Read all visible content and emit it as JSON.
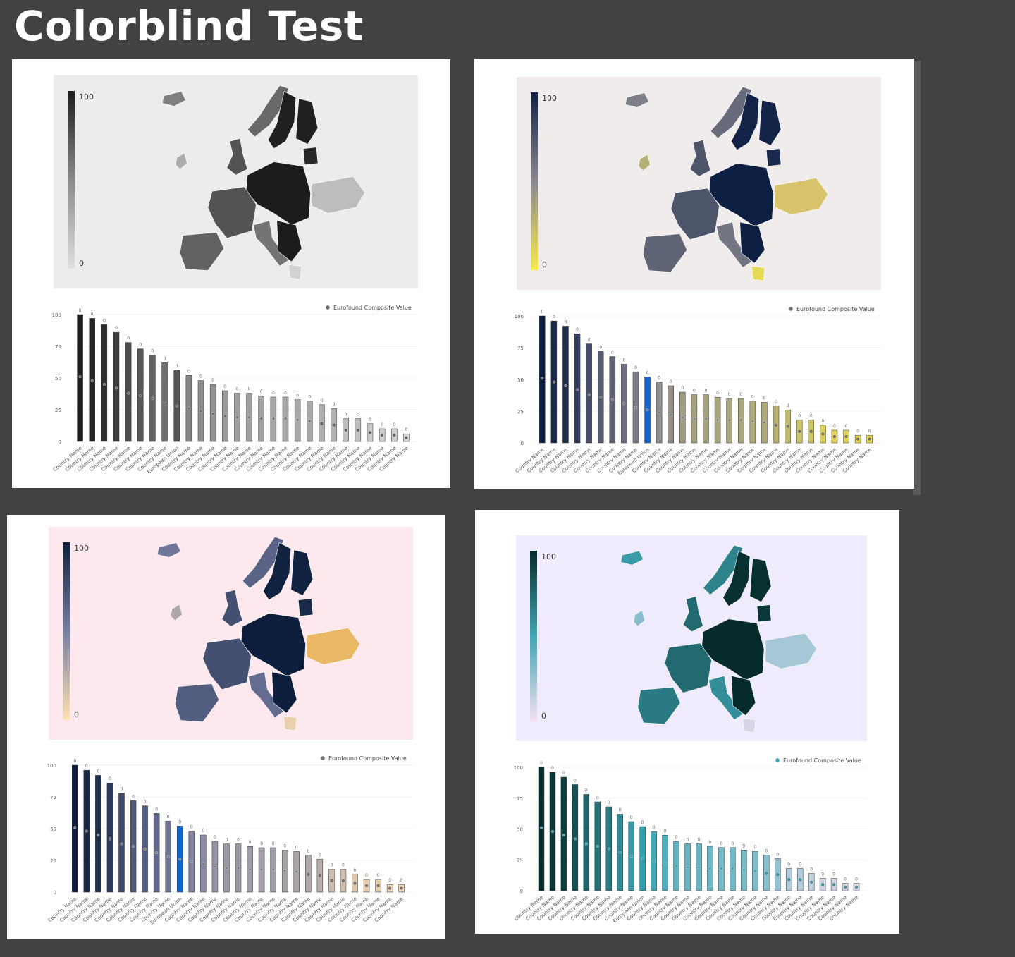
{
  "page": {
    "title": "Colorblind Test"
  },
  "palettes": [
    {
      "name": "grayscale",
      "map_bg": "#ececec",
      "high": "#1c1c1c",
      "mid": "#8a8a8a",
      "low": "#e0e0e0",
      "eu": "#555555",
      "dot": "#666666",
      "non_eu": "#bdbdbd"
    },
    {
      "name": "navy-gold",
      "map_bg": "#efeceb",
      "high": "#0e1f44",
      "mid": "#8c8a92",
      "low": "#f7e84a",
      "eu": "#1266d6",
      "dot": "#777777",
      "non_eu": "#d7c36a"
    },
    {
      "name": "navy-peach",
      "map_bg": "#fde8ee",
      "high": "#0e1f3e",
      "mid": "#7a80a4",
      "low": "#ffe0b0",
      "eu": "#1266c8",
      "dot": "#777777",
      "non_eu": "#e8b865"
    },
    {
      "name": "teal",
      "map_bg": "#efeafc",
      "high": "#062b2b",
      "mid": "#3fa7b4",
      "low": "#f4dff0",
      "eu": "#2fa0ae",
      "dot": "#2aa6b0",
      "non_eu": "#a6c8d6"
    }
  ],
  "chart_data": [
    {
      "type": "bar",
      "title": "",
      "legend": {
        "label": "Eurofound Composite Value",
        "placement": "top-right"
      },
      "legend_label": "Eurofound Composite Value",
      "color_scale_labels": [
        "100",
        "0"
      ],
      "y_ticks": [
        "100",
        "75",
        "50",
        "25",
        "0"
      ],
      "ylim": [
        0,
        100
      ],
      "categories": [
        "Country Name",
        "Country Name",
        "Country Name",
        "Country Name",
        "Country Name",
        "Country Name",
        "Country Name",
        "Country Name",
        "European Union",
        "Country Name",
        "Country Name",
        "Country Name",
        "Country Name",
        "Country Name",
        "Country Name",
        "Country Name",
        "Country Name",
        "Country Name",
        "Country Name",
        "Country Name",
        "Country Name",
        "Country Name",
        "Country Name",
        "Country Name",
        "Country Name",
        "Country Name",
        "Country Name",
        "Country Name"
      ],
      "values": [
        100,
        97,
        92,
        86,
        78,
        73,
        68,
        62,
        56,
        52,
        48,
        45,
        40,
        38,
        38,
        36,
        35,
        35,
        33,
        32,
        29,
        26,
        18,
        18,
        14,
        10,
        10,
        6
      ],
      "composite_values": [
        51,
        48,
        45,
        42,
        38,
        36,
        34,
        31,
        28,
        26,
        24,
        22,
        20,
        19,
        19,
        18,
        18,
        18,
        17,
        16,
        14,
        13,
        9,
        9,
        7,
        5,
        5,
        3
      ],
      "value_labels": [
        "0",
        "0",
        "0",
        "0",
        "0",
        "0",
        "0",
        "0",
        "0",
        "0",
        "0",
        "0",
        "0",
        "0",
        "0",
        "0",
        "0",
        "0",
        "0",
        "0",
        "0",
        "0",
        "0",
        "0",
        "0",
        "0",
        "0",
        "0"
      ],
      "eu_index": 8
    },
    {
      "type": "bar",
      "title": "",
      "legend": {
        "label": "Eurofound Composite Value",
        "placement": "top-right"
      },
      "legend_label": "Eurofound Composite Value",
      "color_scale_labels": [
        "100",
        "0"
      ],
      "y_ticks": [
        "100",
        "75",
        "50",
        "25",
        "0"
      ],
      "ylim": [
        0,
        100
      ],
      "categories": [
        "Country Name",
        "Country Name",
        "Country Name",
        "Country Name",
        "Country Name",
        "Country Name",
        "Country Name",
        "Country Name",
        "Country Name",
        "European Union",
        "Country Name",
        "Country Name",
        "Country Name",
        "Country Name",
        "Country Name",
        "Country Name",
        "Country Name",
        "Country Name",
        "Country Name",
        "Country Name",
        "Country Name",
        "Country Name",
        "Country Name",
        "Country Name",
        "Country Name",
        "Country Name",
        "Country Name",
        "Country Name",
        "Country Name"
      ],
      "values": [
        100,
        96,
        92,
        86,
        78,
        72,
        68,
        62,
        56,
        52,
        48,
        45,
        40,
        38,
        38,
        36,
        35,
        35,
        33,
        32,
        29,
        26,
        18,
        18,
        14,
        10,
        10,
        6,
        6
      ],
      "composite_values": [
        51,
        48,
        45,
        42,
        38,
        36,
        34,
        31,
        28,
        26,
        24,
        22,
        20,
        19,
        19,
        18,
        18,
        18,
        17,
        16,
        14,
        13,
        9,
        9,
        7,
        5,
        5,
        3,
        3
      ],
      "value_labels": [
        "0",
        "0",
        "0",
        "0",
        "0",
        "0",
        "0",
        "0",
        "0",
        "0",
        "0",
        "0",
        "0",
        "0",
        "0",
        "0",
        "0",
        "0",
        "0",
        "0",
        "0",
        "0",
        "0",
        "0",
        "0",
        "0",
        "0",
        "0",
        "0"
      ],
      "eu_index": 9
    },
    {
      "type": "bar",
      "title": "",
      "legend": {
        "label": "Eurofound Composite Value",
        "placement": "top-right"
      },
      "legend_label": "Eurofound Composite Value",
      "color_scale_labels": [
        "100",
        "0"
      ],
      "y_ticks": [
        "100",
        "75",
        "50",
        "25",
        "0"
      ],
      "ylim": [
        0,
        100
      ],
      "categories": [
        "Country Name",
        "Country Name",
        "Country Name",
        "Country Name",
        "Country Name",
        "Country Name",
        "Country Name",
        "Country Name",
        "Country Name",
        "European Union",
        "Country Name",
        "Country Name",
        "Country Name",
        "Country Name",
        "Country Name",
        "Country Name",
        "Country Name",
        "Country Name",
        "Country Name",
        "Country Name",
        "Country Name",
        "Country Name",
        "Country Name",
        "Country Name",
        "Country Name",
        "Country Name",
        "Country Name",
        "Country Name",
        "Country Name"
      ],
      "values": [
        100,
        96,
        92,
        86,
        78,
        72,
        68,
        62,
        56,
        52,
        48,
        45,
        40,
        38,
        38,
        36,
        35,
        35,
        33,
        32,
        29,
        26,
        18,
        18,
        14,
        10,
        10,
        6,
        6
      ],
      "composite_values": [
        51,
        48,
        45,
        42,
        38,
        36,
        34,
        31,
        28,
        26,
        24,
        22,
        20,
        19,
        19,
        18,
        18,
        18,
        17,
        16,
        14,
        13,
        9,
        9,
        7,
        5,
        5,
        3,
        3
      ],
      "value_labels": [
        "0",
        "0",
        "0",
        "0",
        "0",
        "0",
        "0",
        "0",
        "0",
        "0",
        "0",
        "0",
        "0",
        "0",
        "0",
        "0",
        "0",
        "0",
        "0",
        "0",
        "0",
        "0",
        "0",
        "0",
        "0",
        "0",
        "0",
        "0",
        "0"
      ],
      "eu_index": 9
    },
    {
      "type": "bar",
      "title": "",
      "legend": {
        "label": "Eurofound Composite Value",
        "placement": "top-right"
      },
      "legend_label": "Eurofound Composite Value",
      "color_scale_labels": [
        "100",
        "0"
      ],
      "y_ticks": [
        "100",
        "75",
        "50",
        "25",
        "0"
      ],
      "ylim": [
        0,
        100
      ],
      "categories": [
        "Country Name",
        "Country Name",
        "Country Name",
        "Country Name",
        "Country Name",
        "Country Name",
        "Country Name",
        "Country Name",
        "Country Name",
        "European Union",
        "Country Name",
        "Country Name",
        "Country Name",
        "Country Name",
        "Country Name",
        "Country Name",
        "Country Name",
        "Country Name",
        "Country Name",
        "Country Name",
        "Country Name",
        "Country Name",
        "Country Name",
        "Country Name",
        "Country Name",
        "Country Name",
        "Country Name",
        "Country Name",
        "Country Name"
      ],
      "values": [
        100,
        96,
        92,
        86,
        78,
        72,
        68,
        62,
        56,
        52,
        48,
        45,
        40,
        38,
        38,
        36,
        35,
        35,
        33,
        32,
        29,
        26,
        18,
        18,
        14,
        10,
        10,
        6,
        6
      ],
      "composite_values": [
        51,
        48,
        45,
        42,
        38,
        36,
        34,
        31,
        28,
        26,
        24,
        22,
        20,
        19,
        19,
        18,
        18,
        18,
        17,
        16,
        14,
        13,
        9,
        9,
        7,
        5,
        5,
        3,
        3
      ],
      "value_labels": [
        "0",
        "0",
        "0",
        "0",
        "0",
        "0",
        "0",
        "0",
        "0",
        "0",
        "0",
        "0",
        "0",
        "0",
        "0",
        "0",
        "0",
        "0",
        "0",
        "0",
        "0",
        "0",
        "0",
        "0",
        "0",
        "0",
        "0",
        "0",
        "0"
      ],
      "eu_index": 9
    }
  ]
}
